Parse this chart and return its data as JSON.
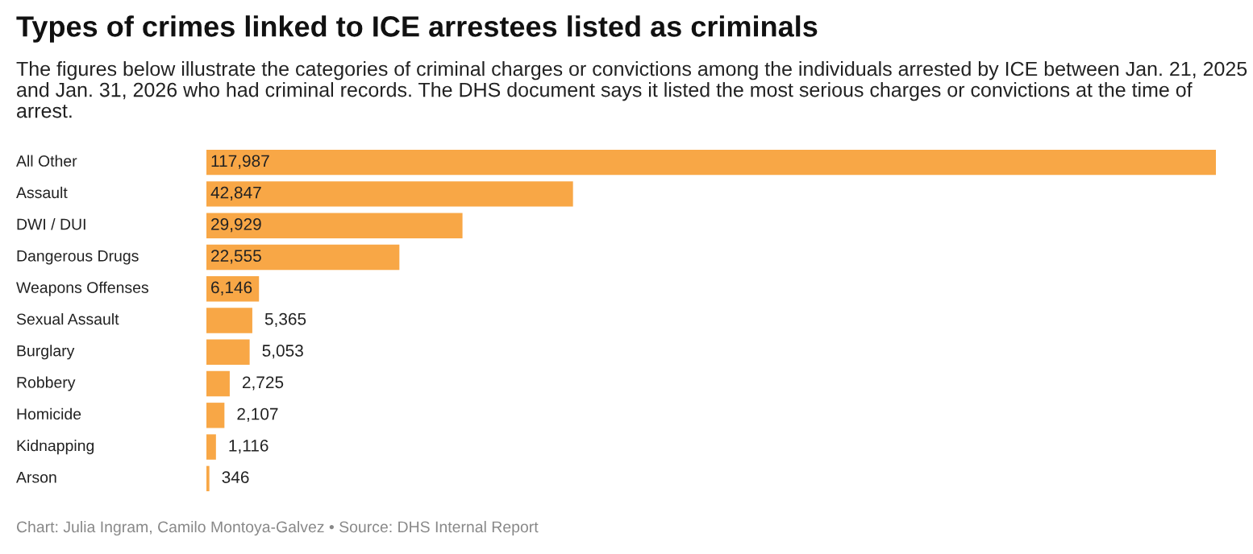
{
  "chart_data": {
    "type": "bar",
    "orientation": "horizontal",
    "value_labels": [
      "117,987",
      "42,847",
      "29,929",
      "22,555",
      "6,146",
      "5,365",
      "5,053",
      "2,725",
      "2,107",
      "1,116",
      "346"
    ],
    "title": "Types of crimes linked to ICE arrestees listed as criminals",
    "subtitle": "The figures below illustrate the categories of criminal charges or convictions among the individuals arrested by ICE between Jan. 21, 2025 and Jan. 31, 2026 who had criminal records. The DHS document says it listed the most serious charges or convictions at the time of arrest.",
    "categories": [
      "All Other",
      "Assault",
      "DWI / DUI",
      "Dangerous Drugs",
      "Weapons Offenses",
      "Sexual Assault",
      "Burglary",
      "Robbery",
      "Homicide",
      "Kidnapping",
      "Arson"
    ],
    "values": [
      117987,
      42847,
      29929,
      22555,
      6146,
      5365,
      5053,
      2725,
      2107,
      1116,
      346
    ],
    "color": "#f8a746",
    "annotations": [
      "Chart: Julia Ingram, Camilo Montoya-Galvez • Source: DHS Internal Report"
    ]
  }
}
